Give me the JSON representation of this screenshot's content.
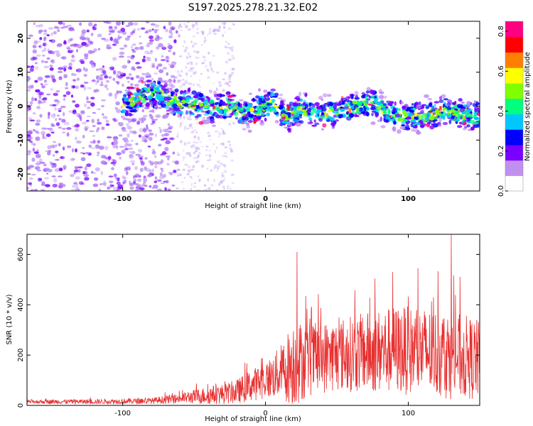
{
  "title": "S197.2025.278.21.32.E02",
  "chart_data": [
    {
      "type": "heatmap",
      "name": "spectrogram",
      "xlabel": "Height of straight line (km)",
      "ylabel": "Frequency (Hz)",
      "xlim": [
        -167,
        150
      ],
      "ylim": [
        -25,
        25
      ],
      "xticks": [
        -100,
        0,
        100
      ],
      "yticks": [
        -20,
        -10,
        0,
        10,
        20
      ],
      "colorbar": {
        "label": "Normalized spectral amplitude",
        "range": [
          0,
          0.85
        ],
        "ticks": [
          0,
          0.2,
          0.4,
          0.6,
          0.8
        ],
        "colors": [
          "#ffffff",
          "#c090f0",
          "#7a00ff",
          "#0000ff",
          "#00c8ff",
          "#00ff80",
          "#80ff00",
          "#ffff00",
          "#ff8000",
          "#ff0000",
          "#ff0080"
        ]
      },
      "ridge": {
        "x": [
          -100,
          -85,
          -75,
          -65,
          -55,
          -45,
          -35,
          -25,
          -15,
          -5,
          5,
          15,
          25,
          35,
          45,
          55,
          65,
          75,
          85,
          95,
          105,
          115,
          125,
          135,
          150
        ],
        "freq": [
          0,
          3,
          4,
          1,
          1,
          0,
          -1,
          0,
          -2,
          -1,
          1,
          -3,
          -1,
          -2,
          -2,
          -1,
          0,
          1,
          -2,
          -3,
          -3,
          -3,
          -1,
          -2,
          -3
        ]
      }
    },
    {
      "type": "line",
      "name": "snr",
      "xlabel": "Height of straight line (km)",
      "ylabel": "SNR (10 * v/v)",
      "xlim": [
        -167,
        150
      ],
      "ylim": [
        0,
        680
      ],
      "xticks": [
        -100,
        0,
        100
      ],
      "yticks": [
        0,
        200,
        400,
        600
      ],
      "color": "#e83030",
      "envelope": {
        "x": [
          -167,
          -120,
          -80,
          -60,
          -50,
          -40,
          -30,
          -20,
          -10,
          0,
          10,
          20,
          30,
          50,
          70,
          90,
          110,
          130,
          150
        ],
        "mean": [
          15,
          15,
          18,
          28,
          35,
          40,
          45,
          55,
          80,
          100,
          130,
          170,
          180,
          200,
          210,
          220,
          215,
          200,
          180
        ],
        "spread": [
          10,
          12,
          15,
          25,
          35,
          45,
          50,
          60,
          80,
          90,
          130,
          220,
          180,
          180,
          200,
          220,
          220,
          220,
          200
        ]
      },
      "peaks": [
        {
          "x": 22,
          "y": 610
        },
        {
          "x": 89,
          "y": 530
        },
        {
          "x": 130,
          "y": 680
        }
      ]
    }
  ]
}
